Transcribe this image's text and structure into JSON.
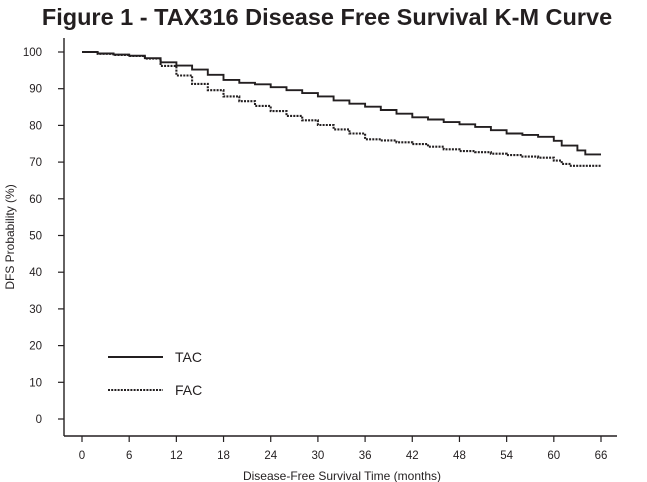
{
  "chart_data": {
    "type": "line",
    "title": "Figure 1 - TAX316 Disease Free Survival K-M Curve",
    "xlabel": "Disease-Free Survival Time (months)",
    "ylabel": "DFS Probability (%)",
    "xlim": [
      0,
      66
    ],
    "ylim": [
      0,
      100
    ],
    "x_ticks": [
      0,
      6,
      12,
      18,
      24,
      30,
      36,
      42,
      48,
      54,
      60,
      66
    ],
    "y_ticks": [
      0,
      10,
      20,
      30,
      40,
      50,
      60,
      70,
      80,
      90,
      100
    ],
    "grid": false,
    "legend_position": "bottom-left",
    "series": [
      {
        "name": "TAC",
        "line_style": "solid",
        "color": "#231f20",
        "x": [
          0,
          2,
          4,
          6,
          8,
          10,
          12,
          14,
          16,
          18,
          20,
          22,
          24,
          26,
          28,
          30,
          32,
          34,
          36,
          38,
          40,
          42,
          44,
          46,
          48,
          50,
          52,
          54,
          56,
          58,
          60,
          61,
          62,
          63,
          64,
          66
        ],
        "y": [
          100,
          99.6,
          99.3,
          99,
          98.3,
          97.2,
          96.3,
          95.2,
          93.8,
          92.4,
          91.6,
          91.2,
          90.4,
          89.6,
          88.8,
          87.9,
          86.8,
          85.9,
          85.1,
          84.2,
          83.2,
          82.2,
          81.6,
          80.9,
          80.3,
          79.6,
          78.7,
          77.8,
          77.4,
          76.9,
          75.8,
          74.5,
          74.5,
          73.2,
          72.1,
          72.1
        ]
      },
      {
        "name": "FAC",
        "line_style": "dashed",
        "color": "#231f20",
        "x": [
          0,
          2,
          4,
          6,
          8,
          10,
          12,
          14,
          16,
          18,
          20,
          22,
          24,
          26,
          28,
          30,
          32,
          34,
          36,
          38,
          40,
          42,
          44,
          46,
          48,
          50,
          52,
          54,
          56,
          58,
          60,
          61,
          62,
          66
        ],
        "y": [
          100,
          99.5,
          99.2,
          98.9,
          98.2,
          96.2,
          93.6,
          91.3,
          89.6,
          87.9,
          86.6,
          85.3,
          83.9,
          82.6,
          81.4,
          80.1,
          78.9,
          77.8,
          76.2,
          75.9,
          75.4,
          74.9,
          74.2,
          73.5,
          73,
          72.7,
          72.3,
          71.9,
          71.5,
          71.2,
          70.4,
          69.5,
          69,
          69
        ]
      }
    ]
  }
}
